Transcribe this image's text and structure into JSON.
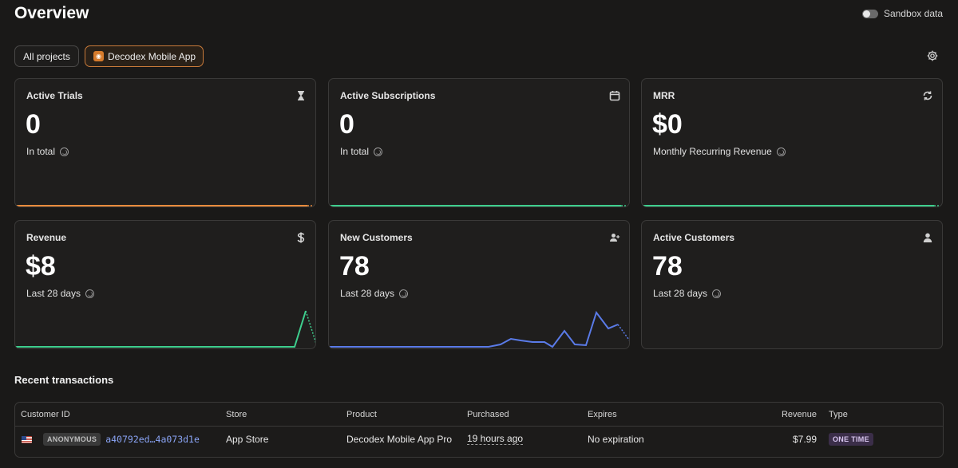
{
  "header": {
    "title": "Overview",
    "sandbox_label": "Sandbox data"
  },
  "projects": {
    "all_label": "All projects",
    "app_label": "Decodex Mobile App"
  },
  "cards": [
    {
      "title": "Active Trials",
      "icon": "hourglass-icon",
      "value": "0",
      "sub": "In total",
      "color": "#e98b3c"
    },
    {
      "title": "Active Subscriptions",
      "icon": "calendar-icon",
      "value": "0",
      "sub": "In total",
      "color": "#3ecf8e"
    },
    {
      "title": "MRR",
      "icon": "refresh-icon",
      "value": "$0",
      "sub": "Monthly Recurring Revenue",
      "color": "#3ecf8e"
    },
    {
      "title": "Revenue",
      "icon": "dollar-icon",
      "value": "$8",
      "sub": "Last 28 days",
      "color": "#3ecf8e"
    },
    {
      "title": "New Customers",
      "icon": "user-plus-icon",
      "value": "78",
      "sub": "Last 28 days",
      "color": "#5a7be8"
    },
    {
      "title": "Active Customers",
      "icon": "user-icon",
      "value": "78",
      "sub": "Last 28 days",
      "color": "#5a7be8"
    }
  ],
  "recent": {
    "title": "Recent transactions",
    "columns": [
      "Customer ID",
      "Store",
      "Product",
      "Purchased",
      "Expires",
      "Revenue",
      "Type"
    ],
    "rows": [
      {
        "badge": "ANONYMOUS",
        "customer_id": "a40792ed…4a073d1e",
        "store": "App Store",
        "product": "Decodex Mobile App Pro",
        "purchased": "19 hours ago",
        "expires": "No expiration",
        "revenue": "$7.99",
        "type": "ONE TIME"
      }
    ]
  }
}
